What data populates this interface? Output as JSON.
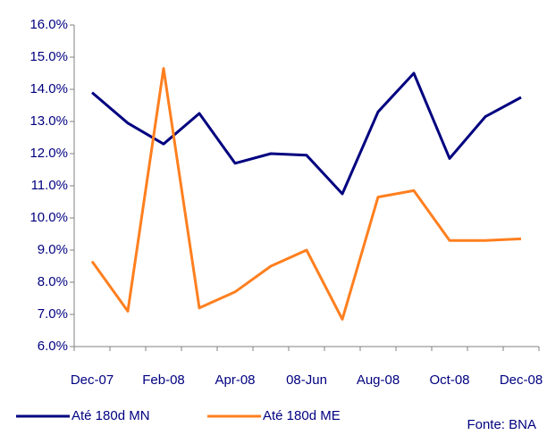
{
  "chart_data": {
    "type": "line",
    "categories": [
      "Dec-07",
      null,
      "Feb-08",
      null,
      "Apr-08",
      null,
      "08-Jun",
      null,
      "Aug-08",
      null,
      "Oct-08",
      null,
      "Dec-08"
    ],
    "series": [
      {
        "name": "Até 180d MN",
        "color": "#000080",
        "values": [
          13.9,
          12.95,
          12.3,
          13.25,
          11.7,
          12.0,
          11.95,
          10.75,
          13.3,
          14.5,
          11.85,
          13.15,
          13.75
        ]
      },
      {
        "name": "Até 180d ME",
        "color": "#ff7f1f",
        "values": [
          8.65,
          7.1,
          14.65,
          7.2,
          7.7,
          8.5,
          9.0,
          6.85,
          10.65,
          10.85,
          9.3,
          9.3,
          9.35
        ]
      }
    ],
    "ylim": [
      6,
      16
    ],
    "yticks": [
      {
        "value": 6,
        "label": "6.0%"
      },
      {
        "value": 7,
        "label": "7.0%"
      },
      {
        "value": 8,
        "label": "8.0%"
      },
      {
        "value": 9,
        "label": "9.0%"
      },
      {
        "value": 10,
        "label": "10.0%"
      },
      {
        "value": 11,
        "label": "11.0%"
      },
      {
        "value": 12,
        "label": "12.0%"
      },
      {
        "value": 13,
        "label": "13.0%"
      },
      {
        "value": 14,
        "label": "14.0%"
      },
      {
        "value": 15,
        "label": "15.0%"
      },
      {
        "value": 16,
        "label": "16.0%"
      }
    ],
    "annotations": [
      "Fonte: BNA"
    ],
    "grid": false
  }
}
